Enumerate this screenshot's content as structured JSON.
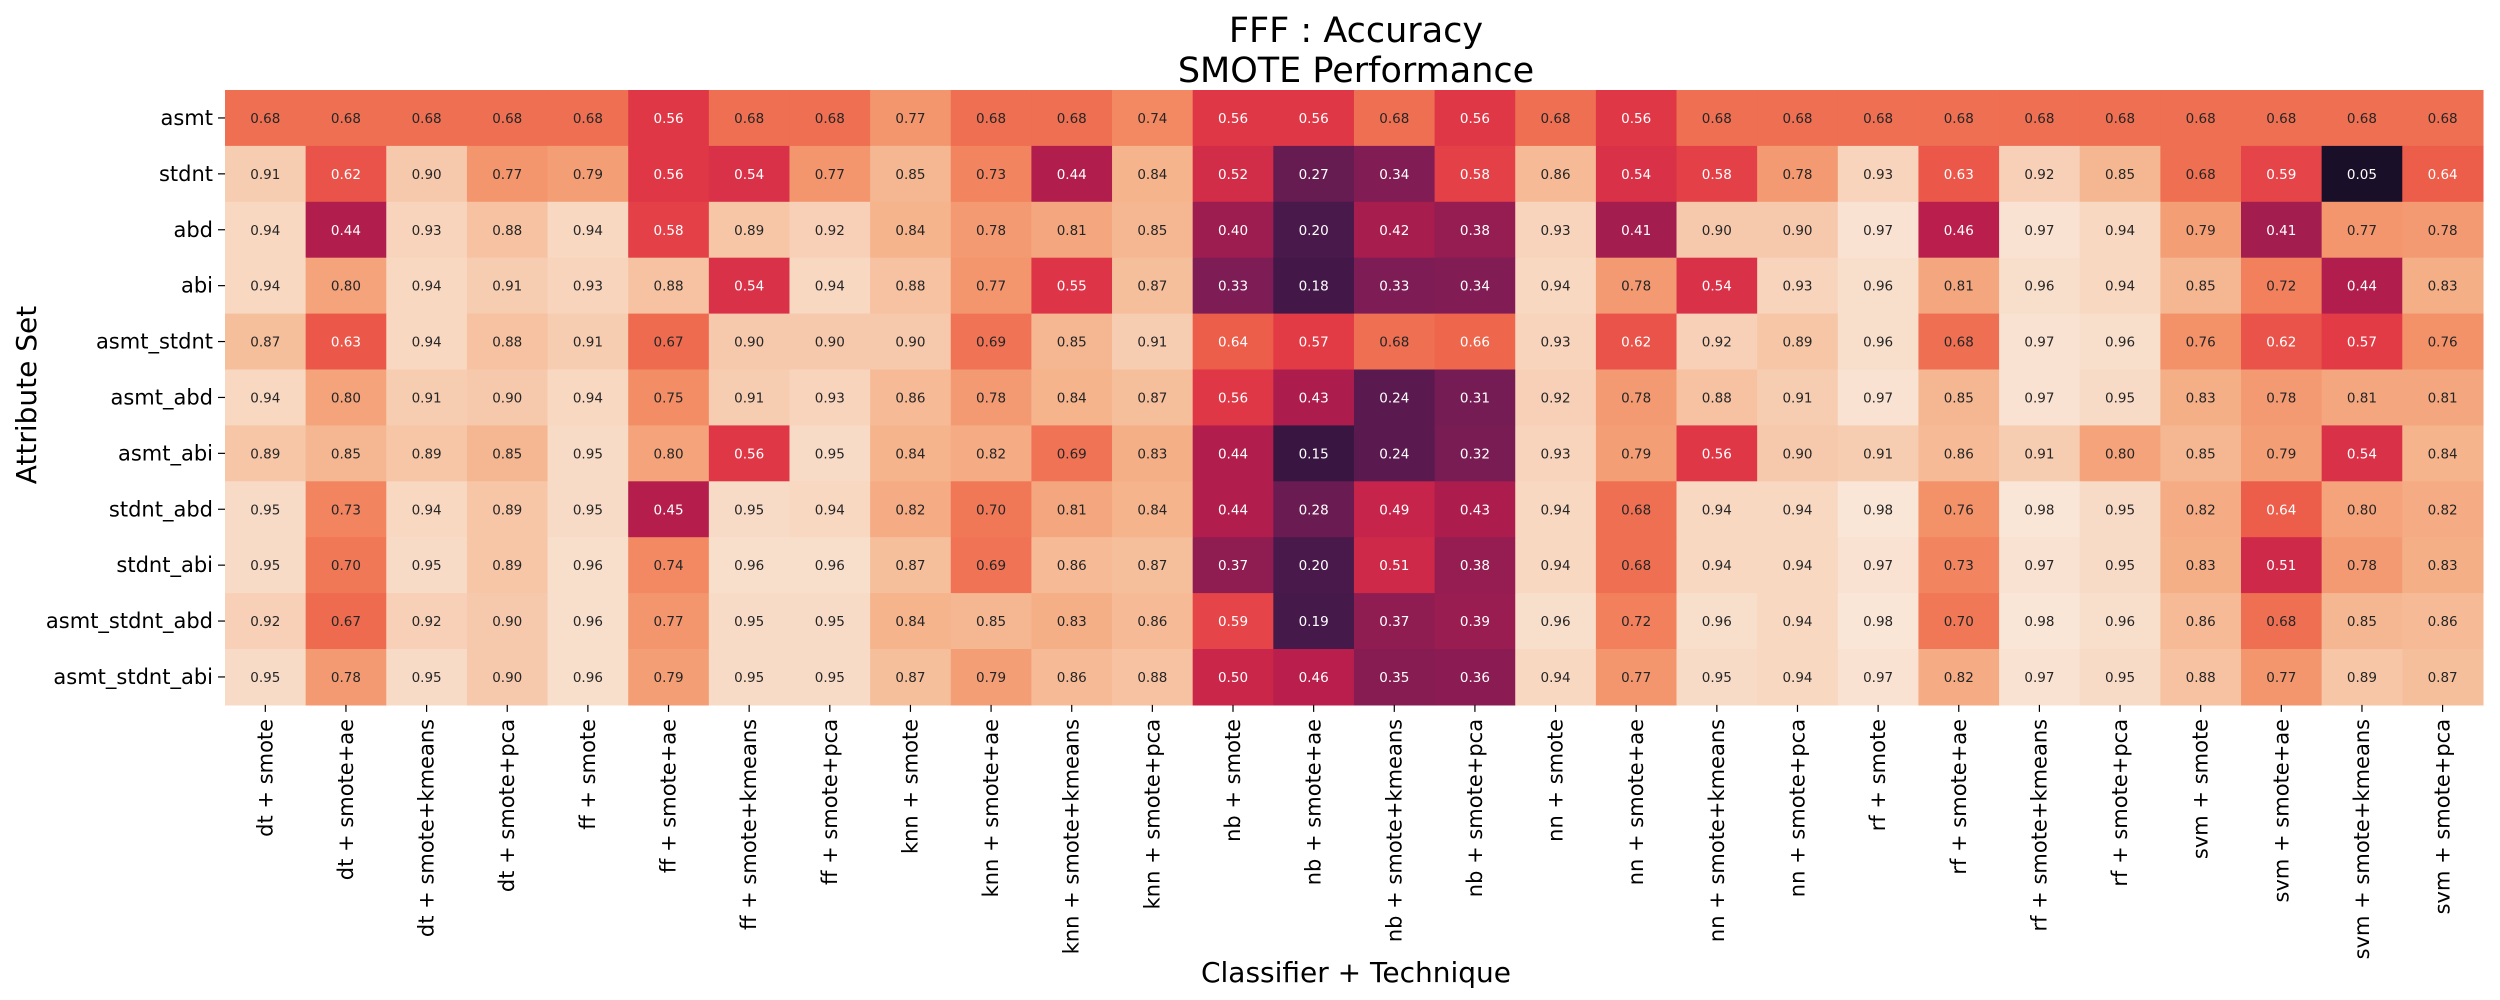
{
  "chart_data": {
    "type": "heatmap",
    "title": "FFF : Accuracy",
    "subtitle": "SMOTE Performance",
    "xlabel": "Classifier + Technique",
    "ylabel": "Attribute Set",
    "colormap": "rocket",
    "vmin": 0.05,
    "vmax": 0.98,
    "x_categories": [
      "dt + smote",
      "dt + smote+ae",
      "dt + smote+kmeans",
      "dt + smote+pca",
      "ff + smote",
      "ff + smote+ae",
      "ff + smote+kmeans",
      "ff + smote+pca",
      "knn + smote",
      "knn + smote+ae",
      "knn + smote+kmeans",
      "knn + smote+pca",
      "nb + smote",
      "nb + smote+ae",
      "nb + smote+kmeans",
      "nb + smote+pca",
      "nn + smote",
      "nn + smote+ae",
      "nn + smote+kmeans",
      "nn + smote+pca",
      "rf + smote",
      "rf + smote+ae",
      "rf + smote+kmeans",
      "rf + smote+pca",
      "svm + smote",
      "svm + smote+ae",
      "svm + smote+kmeans",
      "svm + smote+pca"
    ],
    "y_categories": [
      "asmt",
      "stdnt",
      "abd",
      "abi",
      "asmt_stdnt",
      "asmt_abd",
      "asmt_abi",
      "stdnt_abd",
      "stdnt_abi",
      "asmt_stdnt_abd",
      "asmt_stdnt_abi"
    ],
    "values": [
      [
        0.68,
        0.68,
        0.68,
        0.68,
        0.68,
        0.56,
        0.68,
        0.68,
        0.77,
        0.68,
        0.68,
        0.74,
        0.56,
        0.56,
        0.68,
        0.56,
        0.68,
        0.56,
        0.68,
        0.68,
        0.68,
        0.68,
        0.68,
        0.68,
        0.68,
        0.68,
        0.68,
        0.68
      ],
      [
        0.91,
        0.62,
        0.9,
        0.77,
        0.79,
        0.56,
        0.54,
        0.77,
        0.85,
        0.73,
        0.44,
        0.84,
        0.52,
        0.27,
        0.34,
        0.58,
        0.86,
        0.54,
        0.58,
        0.78,
        0.93,
        0.63,
        0.92,
        0.85,
        0.68,
        0.59,
        0.05,
        0.64
      ],
      [
        0.94,
        0.44,
        0.93,
        0.88,
        0.94,
        0.58,
        0.89,
        0.92,
        0.84,
        0.78,
        0.81,
        0.85,
        0.4,
        0.2,
        0.42,
        0.38,
        0.93,
        0.41,
        0.9,
        0.9,
        0.97,
        0.46,
        0.97,
        0.94,
        0.79,
        0.41,
        0.77,
        0.78
      ],
      [
        0.94,
        0.8,
        0.94,
        0.91,
        0.93,
        0.88,
        0.54,
        0.94,
        0.88,
        0.77,
        0.55,
        0.87,
        0.33,
        0.18,
        0.33,
        0.34,
        0.94,
        0.78,
        0.54,
        0.93,
        0.96,
        0.81,
        0.96,
        0.94,
        0.85,
        0.72,
        0.44,
        0.83
      ],
      [
        0.87,
        0.63,
        0.94,
        0.88,
        0.91,
        0.67,
        0.9,
        0.9,
        0.9,
        0.69,
        0.85,
        0.91,
        0.64,
        0.57,
        0.68,
        0.66,
        0.93,
        0.62,
        0.92,
        0.89,
        0.96,
        0.68,
        0.97,
        0.96,
        0.76,
        0.62,
        0.57,
        0.76
      ],
      [
        0.94,
        0.8,
        0.91,
        0.9,
        0.94,
        0.75,
        0.91,
        0.93,
        0.86,
        0.78,
        0.84,
        0.87,
        0.56,
        0.43,
        0.24,
        0.31,
        0.92,
        0.78,
        0.88,
        0.91,
        0.97,
        0.85,
        0.97,
        0.95,
        0.83,
        0.78,
        0.81,
        0.81
      ],
      [
        0.89,
        0.85,
        0.89,
        0.85,
        0.95,
        0.8,
        0.56,
        0.95,
        0.84,
        0.82,
        0.69,
        0.83,
        0.44,
        0.15,
        0.24,
        0.32,
        0.93,
        0.79,
        0.56,
        0.9,
        0.91,
        0.86,
        0.91,
        0.8,
        0.85,
        0.79,
        0.54,
        0.84
      ],
      [
        0.95,
        0.73,
        0.94,
        0.89,
        0.95,
        0.45,
        0.95,
        0.94,
        0.82,
        0.7,
        0.81,
        0.84,
        0.44,
        0.28,
        0.49,
        0.43,
        0.94,
        0.68,
        0.94,
        0.94,
        0.98,
        0.76,
        0.98,
        0.95,
        0.82,
        0.64,
        0.8,
        0.82
      ],
      [
        0.95,
        0.7,
        0.95,
        0.89,
        0.96,
        0.74,
        0.96,
        0.96,
        0.87,
        0.69,
        0.86,
        0.87,
        0.37,
        0.2,
        0.51,
        0.38,
        0.94,
        0.68,
        0.94,
        0.94,
        0.97,
        0.73,
        0.97,
        0.95,
        0.83,
        0.51,
        0.78,
        0.83
      ],
      [
        0.92,
        0.67,
        0.92,
        0.9,
        0.96,
        0.77,
        0.95,
        0.95,
        0.84,
        0.85,
        0.83,
        0.86,
        0.59,
        0.19,
        0.37,
        0.39,
        0.96,
        0.72,
        0.96,
        0.94,
        0.98,
        0.7,
        0.98,
        0.96,
        0.86,
        0.68,
        0.85,
        0.86
      ],
      [
        0.95,
        0.78,
        0.95,
        0.9,
        0.96,
        0.79,
        0.95,
        0.95,
        0.87,
        0.79,
        0.86,
        0.88,
        0.5,
        0.46,
        0.35,
        0.36,
        0.94,
        0.77,
        0.95,
        0.94,
        0.97,
        0.82,
        0.97,
        0.95,
        0.88,
        0.77,
        0.89,
        0.87
      ]
    ],
    "value_format": "2 decimals",
    "annotated": true,
    "grid": false,
    "legend": "none"
  }
}
